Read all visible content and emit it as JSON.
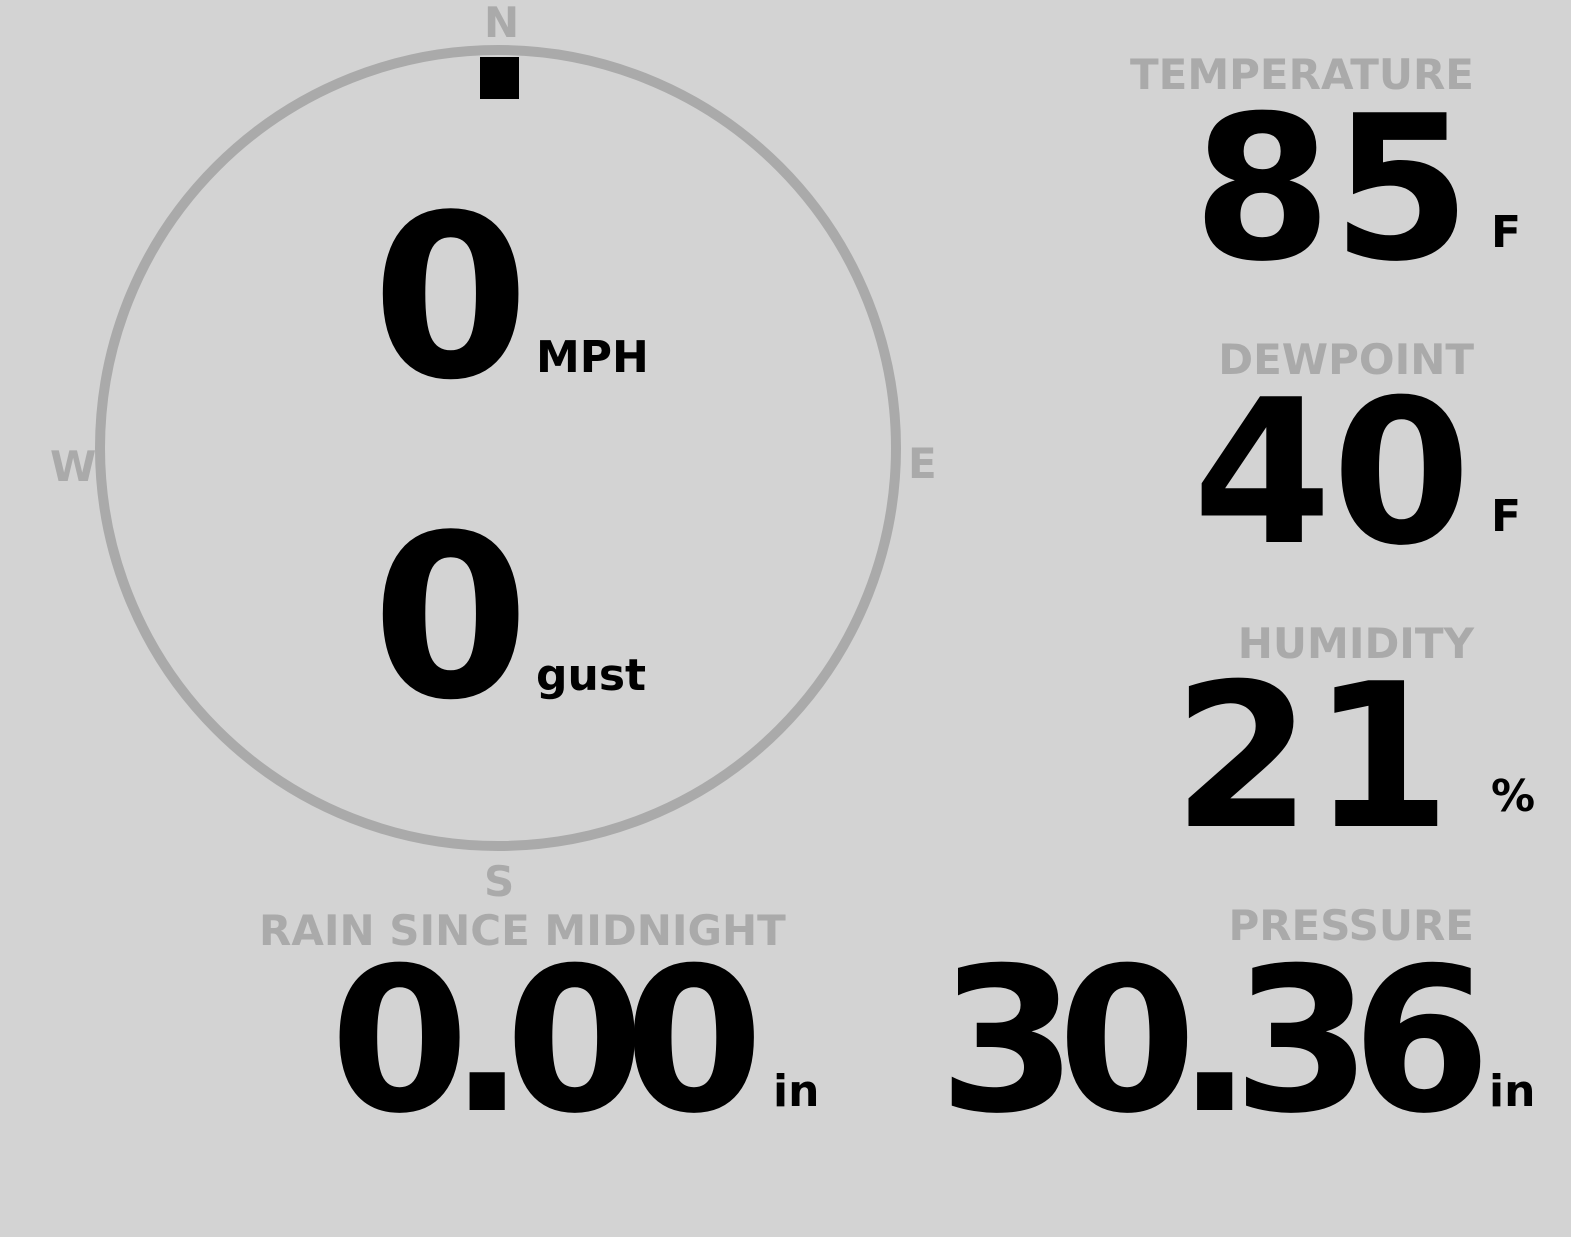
{
  "compass": {
    "labels": {
      "n": "N",
      "e": "E",
      "s": "S",
      "w": "W"
    },
    "wind_direction_deg": 0,
    "ring_color": "#aaaaaa",
    "marker_color": "#000000"
  },
  "wind": {
    "speed": "0",
    "speed_unit": "MPH",
    "gust": "0",
    "gust_unit": "gust"
  },
  "temperature": {
    "label": "TEMPERATURE",
    "value": "85",
    "unit": "F"
  },
  "dewpoint": {
    "label": "DEWPOINT",
    "value": "40",
    "unit": "F"
  },
  "humidity": {
    "label": "HUMIDITY",
    "value": "21",
    "unit": "%"
  },
  "pressure": {
    "label": "PRESSURE",
    "value": "30.36",
    "unit": "in"
  },
  "rain": {
    "label": "RAIN SINCE MIDNIGHT",
    "value": "0.00",
    "unit": "in"
  },
  "colors": {
    "background": "#d3d3d3",
    "label": "#aaaaaa",
    "value": "#000000"
  }
}
